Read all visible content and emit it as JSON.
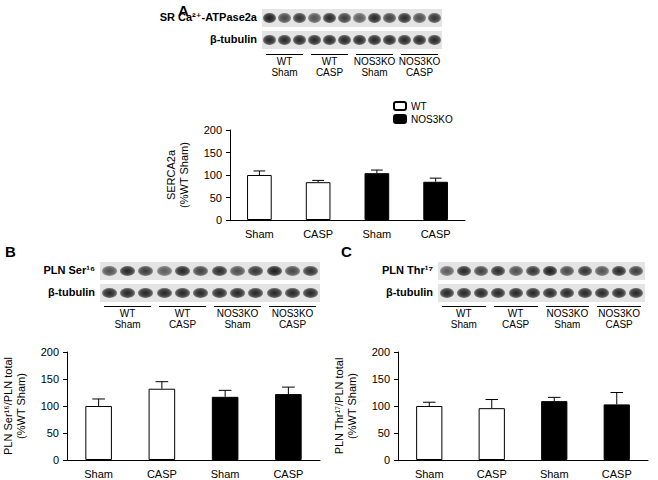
{
  "chart_data": [
    {
      "type": "bar",
      "panel_label": "A",
      "blot": {
        "rows": [
          "SR Ca²⁺-ATPase2a",
          "β-tubulin"
        ],
        "groups": [
          [
            "WT",
            "Sham"
          ],
          [
            "WT",
            "CASP"
          ],
          [
            "NOS3KO",
            "Sham"
          ],
          [
            "NOS3KO",
            "CASP"
          ]
        ]
      },
      "ylabel": "SERCA2a\n(%WT Sham)",
      "categories": [
        "Sham",
        "CASP",
        "Sham",
        "CASP"
      ],
      "series": [
        {
          "name": "WT",
          "color": "#ffffff",
          "values": [
            100,
            84,
            null,
            null
          ],
          "errors": [
            9,
            4,
            null,
            null
          ]
        },
        {
          "name": "NOS3KO",
          "color": "#000000",
          "values": [
            null,
            null,
            104,
            85
          ],
          "errors": [
            null,
            null,
            7,
            8
          ]
        }
      ],
      "ylim": [
        0,
        200
      ],
      "yticks": [
        0,
        50,
        100,
        150,
        200
      ],
      "grid": false,
      "legend": "top-right"
    },
    {
      "type": "bar",
      "panel_label": "B",
      "blot": {
        "rows": [
          "PLN Ser¹⁶",
          "β-tubulin"
        ],
        "groups": [
          [
            "WT",
            "Sham"
          ],
          [
            "WT",
            "CASP"
          ],
          [
            "NOS3KO",
            "Sham"
          ],
          [
            "NOS3KO",
            "CASP"
          ]
        ]
      },
      "ylabel": "PLN Ser¹⁶/PLN total\n(%WT Sham)",
      "categories": [
        "Sham",
        "CASP",
        "Sham",
        "CASP"
      ],
      "values": [
        100,
        132,
        117,
        122
      ],
      "errors": [
        13,
        13,
        12,
        13
      ],
      "colors": [
        "#ffffff",
        "#ffffff",
        "#000000",
        "#000000"
      ],
      "ylim": [
        0,
        200
      ],
      "yticks": [
        0,
        50,
        100,
        150,
        200
      ],
      "grid": false
    },
    {
      "type": "bar",
      "panel_label": "C",
      "blot": {
        "rows": [
          "PLN Thr¹⁷",
          "β-tubulin"
        ],
        "groups": [
          [
            "WT",
            "Sham"
          ],
          [
            "WT",
            "CASP"
          ],
          [
            "NOS3KO",
            "Sham"
          ],
          [
            "NOS3KO",
            "CASP"
          ]
        ]
      },
      "ylabel": "PLN Thr¹⁷/PLN total\n(%WT Sham)",
      "categories": [
        "Sham",
        "CASP",
        "Sham",
        "CASP"
      ],
      "values": [
        100,
        96,
        109,
        103
      ],
      "errors": [
        7,
        16,
        7,
        22
      ],
      "colors": [
        "#ffffff",
        "#ffffff",
        "#000000",
        "#000000"
      ],
      "ylim": [
        0,
        200
      ],
      "yticks": [
        0,
        50,
        100,
        150,
        200
      ],
      "grid": false
    }
  ]
}
